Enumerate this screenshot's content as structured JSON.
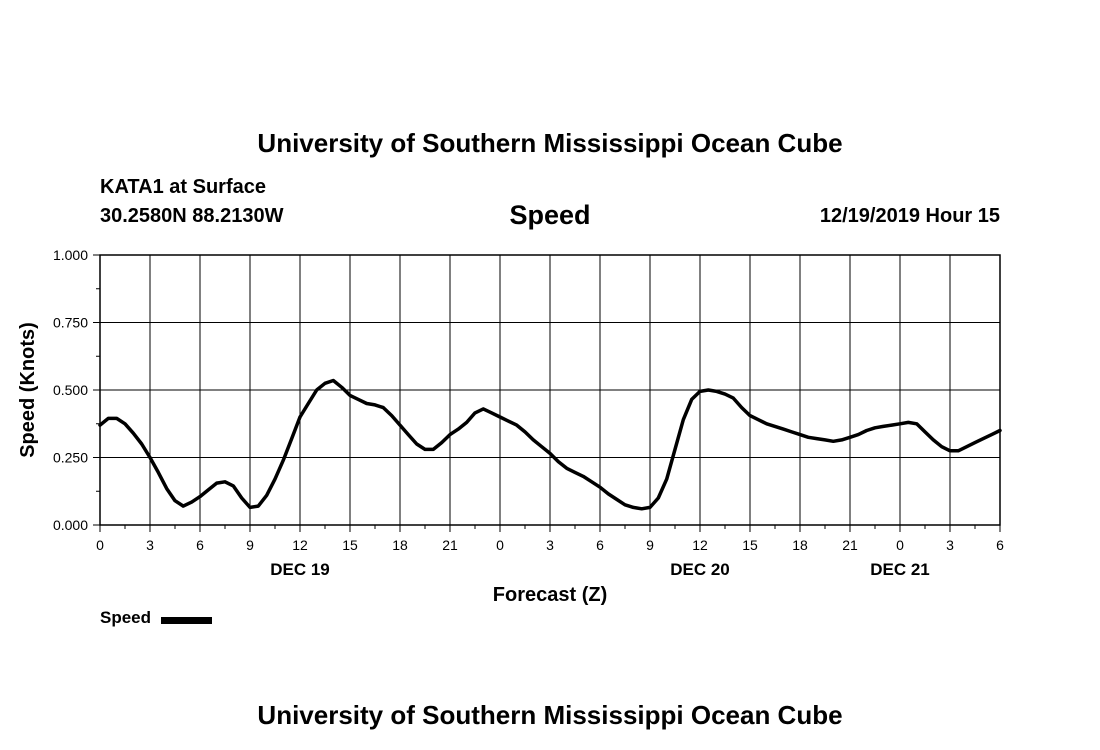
{
  "header": {
    "title": "University of Southern Mississippi Ocean Cube",
    "station": "KATA1 at Surface",
    "coords": "30.2580N 88.2130W",
    "plot_title": "Speed",
    "timestamp": "12/19/2019 Hour 15"
  },
  "footer": {
    "title": "University of Southern Mississippi Ocean Cube"
  },
  "legend": {
    "label": "Speed",
    "color": "#000000"
  },
  "chart_data": {
    "type": "line",
    "title": "Speed",
    "xlabel": "Forecast (Z)",
    "ylabel": "Speed (Knots)",
    "ylim": [
      0,
      1
    ],
    "yticks": [
      "0.000",
      "0.250",
      "0.500",
      "0.750",
      "1.000"
    ],
    "xlim": [
      0,
      54
    ],
    "xtick_labels": [
      "0",
      "3",
      "6",
      "9",
      "12",
      "15",
      "18",
      "21",
      "0",
      "3",
      "6",
      "9",
      "12",
      "15",
      "18",
      "21",
      "0",
      "3",
      "6"
    ],
    "date_labels": [
      {
        "label": "DEC 19",
        "hour": 12
      },
      {
        "label": "DEC 20",
        "hour": 36
      },
      {
        "label": "DEC 21",
        "hour": 48
      }
    ],
    "grid": true,
    "series": [
      {
        "name": "Speed",
        "x": [
          0,
          0.5,
          1,
          1.5,
          2,
          2.5,
          3,
          3.5,
          4,
          4.5,
          5,
          5.5,
          6,
          6.5,
          7,
          7.5,
          8,
          8.5,
          9,
          9.5,
          10,
          10.5,
          11,
          11.5,
          12,
          12.5,
          13,
          13.5,
          14,
          14.5,
          15,
          15.5,
          16,
          16.5,
          17,
          17.5,
          18,
          18.5,
          19,
          19.5,
          20,
          20.5,
          21,
          21.5,
          22,
          22.5,
          23,
          23.5,
          24,
          24.5,
          25,
          25.5,
          26,
          26.5,
          27,
          27.5,
          28,
          28.5,
          29,
          29.5,
          30,
          30.5,
          31,
          31.5,
          32,
          32.5,
          33,
          33.5,
          34,
          34.5,
          35,
          35.5,
          36,
          36.5,
          37,
          37.5,
          38,
          38.5,
          39,
          39.5,
          40,
          40.5,
          41,
          41.5,
          42,
          42.5,
          43,
          43.5,
          44,
          44.5,
          45,
          45.5,
          46,
          46.5,
          47,
          47.5,
          48,
          48.5,
          49,
          49.5,
          50,
          50.5,
          51,
          51.5,
          52,
          52.5,
          53,
          53.5,
          54
        ],
        "values": [
          0.37,
          0.395,
          0.395,
          0.375,
          0.34,
          0.3,
          0.25,
          0.195,
          0.135,
          0.09,
          0.07,
          0.085,
          0.105,
          0.13,
          0.155,
          0.16,
          0.145,
          0.1,
          0.065,
          0.07,
          0.11,
          0.17,
          0.24,
          0.32,
          0.4,
          0.45,
          0.5,
          0.525,
          0.535,
          0.51,
          0.48,
          0.465,
          0.45,
          0.445,
          0.435,
          0.405,
          0.37,
          0.335,
          0.3,
          0.28,
          0.28,
          0.305,
          0.335,
          0.355,
          0.38,
          0.415,
          0.43,
          0.415,
          0.4,
          0.385,
          0.37,
          0.345,
          0.315,
          0.29,
          0.265,
          0.235,
          0.21,
          0.195,
          0.18,
          0.16,
          0.14,
          0.115,
          0.095,
          0.075,
          0.065,
          0.06,
          0.065,
          0.1,
          0.17,
          0.28,
          0.39,
          0.465,
          0.495,
          0.5,
          0.495,
          0.485,
          0.47,
          0.435,
          0.405,
          0.39,
          0.375,
          0.365,
          0.355,
          0.345,
          0.335,
          0.325,
          0.32,
          0.315,
          0.31,
          0.315,
          0.325,
          0.335,
          0.35,
          0.36,
          0.365,
          0.37,
          0.375,
          0.38,
          0.375,
          0.345,
          0.315,
          0.29,
          0.275,
          0.275,
          0.29,
          0.305,
          0.32,
          0.335,
          0.35
        ]
      }
    ]
  }
}
